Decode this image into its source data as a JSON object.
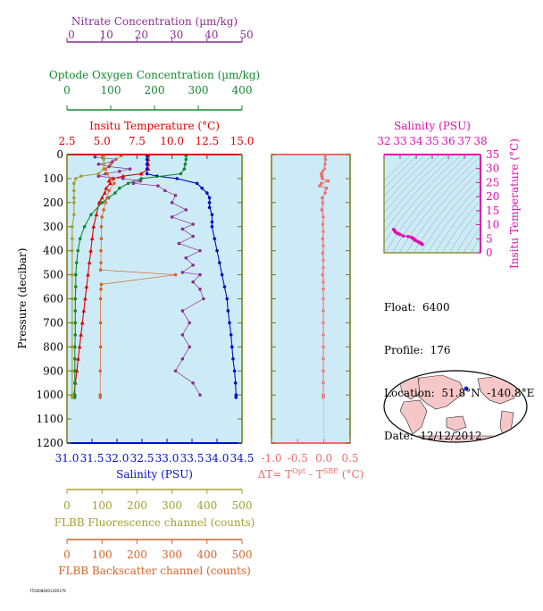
{
  "info": {
    "float_line": "Float:  6400",
    "profile_line": "Profile:  176",
    "location_line": "Location:  51.8°N  -140.8°E",
    "date_line": "Date:  12/12/2012"
  },
  "footnote": "7550084001200179",
  "colors": {
    "plot_bg": "#cdebf7",
    "nitrate": "#8b2f8f",
    "oxygen": "#108a2c",
    "temperature": "#e00000",
    "salinity": "#0010c8",
    "fluorescence": "#a5a030",
    "backscatter": "#d8642a",
    "delta_t": "#f06a6a",
    "ts_axis": "#e010b0",
    "frame": "#7a7a10"
  },
  "chart_data": [
    {
      "type": "line",
      "panel": "main-profile",
      "y_axis": {
        "label": "Pressure (decibar)",
        "range": [
          0,
          1200
        ],
        "reversed": true,
        "ticks": [
          "0",
          "100",
          "200",
          "300",
          "400",
          "500",
          "600",
          "700",
          "800",
          "900",
          "1000",
          "1100",
          "1200"
        ]
      },
      "axes": {
        "nitrate": {
          "label": "Nitrate Concentration (µm/kg)",
          "range": [
            0,
            50
          ],
          "ticks": [
            "0",
            "10",
            "20",
            "30",
            "40",
            "50"
          ]
        },
        "oxygen": {
          "label": "Optode Oxygen Concentration (µm/kg)",
          "range": [
            0,
            400
          ],
          "ticks": [
            "0",
            "100",
            "200",
            "300",
            "400"
          ]
        },
        "temperature": {
          "label": "Insitu Temperature (°C)",
          "range": [
            2.5,
            15
          ],
          "ticks": [
            "2.5",
            "5.0",
            "7.5",
            "10.0",
            "12.5",
            "15.0"
          ]
        },
        "salinity": {
          "label": "Salinity (PSU)",
          "range": [
            31,
            34.5
          ],
          "ticks": [
            "31.0",
            "31.5",
            "32.0",
            "32.5",
            "33.0",
            "33.5",
            "34.0",
            "34.5"
          ]
        },
        "fluorescence": {
          "label": "FLBB Fluorescence channel (counts)",
          "range": [
            0,
            500
          ],
          "ticks": [
            "0",
            "100",
            "200",
            "300",
            "400",
            "500"
          ]
        },
        "backscatter": {
          "label": "FLBB Backscatter channel (counts)",
          "range": [
            0,
            500
          ],
          "ticks": [
            "0",
            "100",
            "200",
            "300",
            "400",
            "500"
          ]
        }
      },
      "series": [
        {
          "axis": "temperature",
          "pressure": [
            5,
            20,
            40,
            60,
            80,
            90,
            100,
            110,
            120,
            140,
            160,
            180,
            200,
            250,
            300,
            350,
            400,
            450,
            500,
            550,
            600,
            650,
            700,
            750,
            800,
            850,
            900,
            950,
            1000,
            1010
          ],
          "values": [
            8.3,
            8.3,
            8.3,
            8.3,
            7.8,
            6.5,
            5.8,
            5.5,
            5.6,
            5.3,
            5.2,
            5.0,
            4.8,
            4.6,
            4.4,
            4.3,
            4.2,
            4.1,
            4.0,
            3.9,
            3.8,
            3.7,
            3.6,
            3.5,
            3.4,
            3.3,
            3.2,
            3.1,
            3.0,
            3.0
          ]
        },
        {
          "axis": "salinity",
          "pressure": [
            5,
            20,
            40,
            60,
            80,
            90,
            100,
            120,
            140,
            160,
            180,
            200,
            220,
            250,
            280,
            300,
            350,
            400,
            450,
            500,
            550,
            600,
            650,
            700,
            750,
            800,
            850,
            900,
            950,
            1000,
            1010
          ],
          "values": [
            32.6,
            32.6,
            32.6,
            32.6,
            32.6,
            32.8,
            33.2,
            33.6,
            33.7,
            33.8,
            33.85,
            33.85,
            33.85,
            33.9,
            33.9,
            33.9,
            33.95,
            34.0,
            34.05,
            34.1,
            34.15,
            34.2,
            34.22,
            34.25,
            34.28,
            34.3,
            34.32,
            34.35,
            34.37,
            34.38,
            34.38
          ]
        },
        {
          "axis": "oxygen",
          "pressure": [
            5,
            20,
            40,
            60,
            80,
            100,
            120,
            140,
            160,
            180,
            200,
            250,
            300,
            350,
            400,
            450,
            500,
            550,
            600,
            650,
            700,
            750,
            800,
            850,
            900,
            950,
            1000,
            1010
          ],
          "values": [
            272,
            272,
            270,
            268,
            260,
            170,
            140,
            120,
            110,
            95,
            80,
            55,
            40,
            30,
            25,
            22,
            20,
            20,
            19,
            19,
            19,
            19,
            18,
            18,
            18,
            18,
            18,
            18
          ]
        },
        {
          "axis": "nitrate",
          "pressure": [
            10,
            20,
            30,
            40,
            50,
            60,
            70,
            80,
            90,
            100,
            110,
            120,
            130,
            150,
            170,
            200,
            230,
            260,
            290,
            310,
            340,
            370,
            400,
            430,
            460,
            490,
            500,
            530,
            560,
            600,
            650,
            700,
            750,
            800,
            850,
            900,
            950,
            1000
          ],
          "values": [
            8,
            14,
            13,
            9,
            12,
            18,
            15,
            11,
            9,
            16,
            21,
            19,
            26,
            28,
            31,
            30,
            34,
            30,
            36,
            33,
            36,
            32,
            38,
            34,
            36,
            33,
            38,
            36,
            38,
            39,
            33,
            35,
            33,
            35,
            33,
            31,
            36,
            38
          ]
        },
        {
          "axis": "fluorescence",
          "pressure": [
            5,
            20,
            40,
            60,
            80,
            90,
            100,
            120,
            150,
            180,
            200,
            250,
            300,
            350,
            400,
            500,
            600,
            700,
            800,
            900,
            1000,
            1010
          ],
          "values": [
            105,
            105,
            105,
            105,
            90,
            40,
            25,
            20,
            20,
            20,
            20,
            20,
            15,
            15,
            15,
            15,
            15,
            15,
            15,
            15,
            15,
            15
          ]
        },
        {
          "axis": "backscatter",
          "pressure": [
            5,
            20,
            40,
            60,
            80,
            100,
            120,
            150,
            180,
            200,
            230,
            260,
            300,
            350,
            400,
            450,
            480,
            500,
            540,
            560,
            600,
            700,
            800,
            900,
            1000,
            1010
          ],
          "values": [
            155,
            140,
            125,
            110,
            115,
            125,
            135,
            120,
            115,
            110,
            105,
            100,
            98,
            98,
            97,
            97,
            96,
            310,
            98,
            97,
            96,
            96,
            96,
            95,
            95,
            95
          ]
        }
      ]
    },
    {
      "type": "line",
      "panel": "delta-t",
      "x_label": "ΔT= TOpt - TSBE (°C)",
      "x_range": [
        -1.0,
        0.5
      ],
      "x_ticks": [
        "-1.0",
        "-0.5",
        "0.0",
        "0.5"
      ],
      "y_range": [
        0,
        1200
      ],
      "series": [
        {
          "name": "ΔT",
          "pressure": [
            5,
            20,
            40,
            60,
            70,
            80,
            90,
            100,
            110,
            120,
            130,
            140,
            160,
            180,
            200,
            230,
            260,
            290,
            320,
            350,
            380,
            410,
            440,
            470,
            500,
            530,
            560,
            600,
            650,
            700,
            750,
            800,
            850,
            900,
            950,
            1000,
            1010
          ],
          "values": [
            0.02,
            0.03,
            0.02,
            0.01,
            -0.02,
            -0.05,
            -0.04,
            -0.03,
            0.08,
            -0.05,
            -0.08,
            0.05,
            0.02,
            -0.03,
            -0.02,
            -0.04,
            -0.01,
            -0.02,
            -0.01,
            -0.02,
            -0.01,
            -0.02,
            -0.01,
            -0.01,
            -0.02,
            -0.01,
            -0.01,
            -0.01,
            -0.01,
            -0.01,
            -0.01,
            -0.01,
            -0.01,
            -0.01,
            -0.01,
            -0.01,
            -0.01
          ]
        }
      ]
    },
    {
      "type": "scatter",
      "panel": "ts-diagram",
      "x_label": "Salinity (PSU)",
      "y_label": "Insitu Temperature (°C)",
      "x_range": [
        32,
        38
      ],
      "y_range": [
        0,
        35
      ],
      "x_ticks": [
        "32",
        "33",
        "34",
        "35",
        "36",
        "37",
        "38"
      ],
      "y_ticks": [
        "0",
        "5",
        "10",
        "15",
        "20",
        "25",
        "30",
        "35"
      ],
      "series": [
        {
          "name": "T-S",
          "salinity": [
            32.6,
            32.65,
            32.7,
            32.8,
            32.9,
            33.0,
            33.2,
            33.5,
            33.7,
            33.8,
            33.85,
            33.9,
            34.0,
            34.1,
            34.2,
            34.3,
            34.38
          ],
          "temperature": [
            8.3,
            8.0,
            7.5,
            7.0,
            6.8,
            6.5,
            6.0,
            5.8,
            5.5,
            5.2,
            4.9,
            4.6,
            4.3,
            4.0,
            3.7,
            3.4,
            3.0
          ]
        }
      ]
    }
  ]
}
